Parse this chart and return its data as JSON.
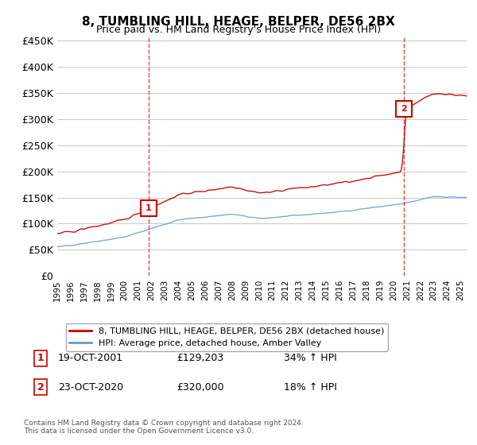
{
  "title": "8, TUMBLING HILL, HEAGE, BELPER, DE56 2BX",
  "subtitle": "Price paid vs. HM Land Registry's House Price Index (HPI)",
  "ylabel_ticks": [
    "£0",
    "£50K",
    "£100K",
    "£150K",
    "£200K",
    "£250K",
    "£300K",
    "£350K",
    "£400K",
    "£450K"
  ],
  "ytick_vals": [
    0,
    50000,
    100000,
    150000,
    200000,
    250000,
    300000,
    350000,
    400000,
    450000
  ],
  "ylim": [
    0,
    460000
  ],
  "xlim_start": 1995.0,
  "xlim_end": 2025.5,
  "marker1_x": 2001.8,
  "marker1_y": 129203,
  "marker2_x": 2020.8,
  "marker2_y": 320000,
  "legend_line1": "8, TUMBLING HILL, HEAGE, BELPER, DE56 2BX (detached house)",
  "legend_line2": "HPI: Average price, detached house, Amber Valley",
  "table_row1_num": "1",
  "table_row1_date": "19-OCT-2001",
  "table_row1_price": "£129,203",
  "table_row1_hpi": "34% ↑ HPI",
  "table_row2_num": "2",
  "table_row2_date": "23-OCT-2020",
  "table_row2_price": "£320,000",
  "table_row2_hpi": "18% ↑ HPI",
  "footnote": "Contains HM Land Registry data © Crown copyright and database right 2024.\nThis data is licensed under the Open Government Licence v3.0.",
  "line_color_red": "#cc0000",
  "line_color_blue": "#6699cc",
  "marker_line_color": "#cc0000",
  "background_color": "#ffffff",
  "grid_color": "#cccccc"
}
